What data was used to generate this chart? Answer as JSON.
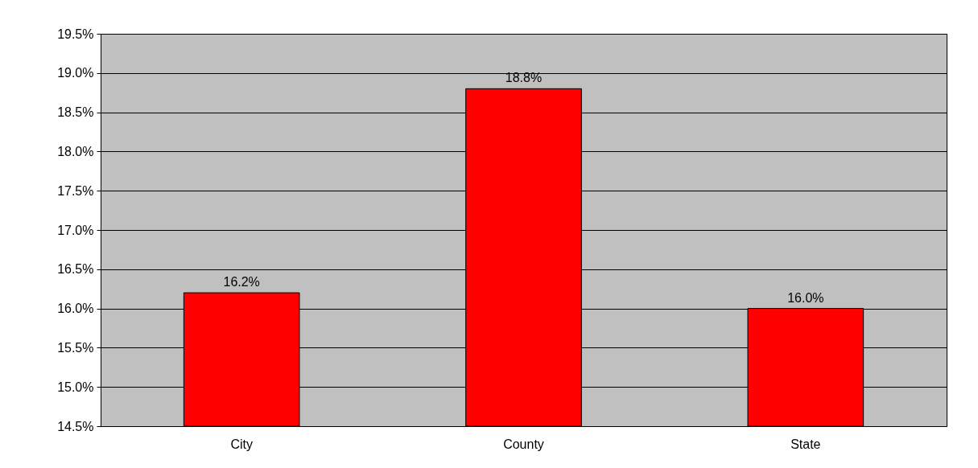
{
  "chart_data": {
    "type": "bar",
    "categories": [
      "City",
      "County",
      "State"
    ],
    "values": [
      16.2,
      18.8,
      16.0
    ],
    "value_labels": [
      "16.2%",
      "18.8%",
      "16.0%"
    ],
    "color": "#ff0000",
    "ylim": [
      14.5,
      19.5
    ],
    "yticks": [
      {
        "value": 14.5,
        "label": "14.5%"
      },
      {
        "value": 15.0,
        "label": "15.0%"
      },
      {
        "value": 15.5,
        "label": "15.5%"
      },
      {
        "value": 16.0,
        "label": "16.0%"
      },
      {
        "value": 16.5,
        "label": "16.5%"
      },
      {
        "value": 17.0,
        "label": "17.0%"
      },
      {
        "value": 17.5,
        "label": "17.5%"
      },
      {
        "value": 18.0,
        "label": "18.0%"
      },
      {
        "value": 18.5,
        "label": "18.5%"
      },
      {
        "value": 19.0,
        "label": "19.0%"
      },
      {
        "value": 19.5,
        "label": "19.5%"
      }
    ],
    "grid": "y"
  }
}
